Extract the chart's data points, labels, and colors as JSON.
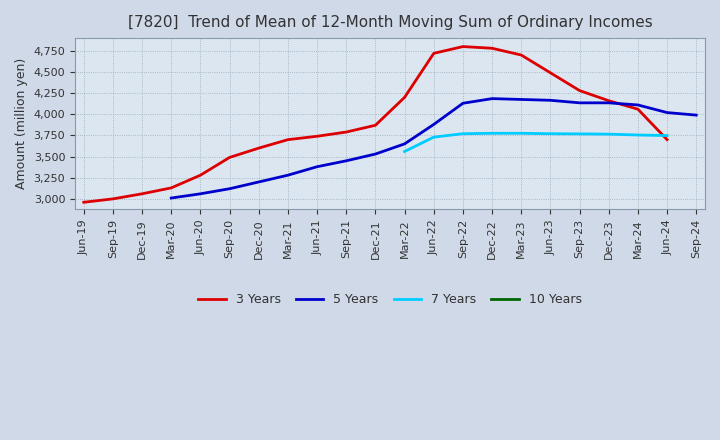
{
  "title": "[7820]  Trend of Mean of 12-Month Moving Sum of Ordinary Incomes",
  "ylabel": "Amount (million yen)",
  "xlabels": [
    "Jun-19",
    "Sep-19",
    "Dec-19",
    "Mar-20",
    "Jun-20",
    "Sep-20",
    "Dec-20",
    "Mar-21",
    "Jun-21",
    "Sep-21",
    "Dec-21",
    "Mar-22",
    "Jun-22",
    "Sep-22",
    "Dec-22",
    "Mar-23",
    "Jun-23",
    "Sep-23",
    "Dec-23",
    "Mar-24",
    "Jun-24",
    "Sep-24"
  ],
  "ylim": [
    2875,
    4900
  ],
  "yticks": [
    3000,
    3250,
    3500,
    3750,
    4000,
    4250,
    4500,
    4750
  ],
  "series": [
    {
      "label": "3 Years",
      "color": "#dd0000",
      "data_x": [
        0,
        1,
        2,
        3,
        4,
        5,
        6,
        7,
        8,
        9,
        10,
        11,
        12,
        13,
        14,
        15,
        16,
        17,
        18,
        19,
        20
      ],
      "data_y": [
        2960,
        3000,
        3060,
        3130,
        3280,
        3490,
        3600,
        3700,
        3740,
        3790,
        3870,
        4200,
        4720,
        4800,
        4780,
        4700,
        4490,
        4280,
        4160,
        4060,
        3700
      ]
    },
    {
      "label": "5 Years",
      "color": "#0000cc",
      "data_x": [
        3,
        4,
        5,
        6,
        7,
        8,
        9,
        10,
        11,
        12,
        13,
        14,
        15,
        16,
        17,
        18,
        19,
        20,
        21
      ],
      "data_y": [
        3010,
        3060,
        3120,
        3200,
        3280,
        3380,
        3450,
        3530,
        3650,
        3880,
        4130,
        4185,
        4175,
        4165,
        4135,
        4135,
        4110,
        4020,
        3990
      ]
    },
    {
      "label": "7 Years",
      "color": "#00ccff",
      "data_x": [
        11,
        12,
        13,
        14,
        15,
        16,
        17,
        18,
        19,
        20
      ],
      "data_y": [
        3560,
        3730,
        3770,
        3775,
        3775,
        3770,
        3768,
        3765,
        3755,
        3748
      ]
    },
    {
      "label": "10 Years",
      "color": "#006600",
      "data_x": [],
      "data_y": []
    }
  ],
  "outer_bg_color": "#cfd9e8",
  "plot_bg_color": "#dce6f1",
  "grid_color": "#8899aa",
  "title_fontsize": 11,
  "title_color": "#333333",
  "axis_fontsize": 9,
  "tick_fontsize": 8,
  "legend_fontsize": 9,
  "line_width": 2.0
}
